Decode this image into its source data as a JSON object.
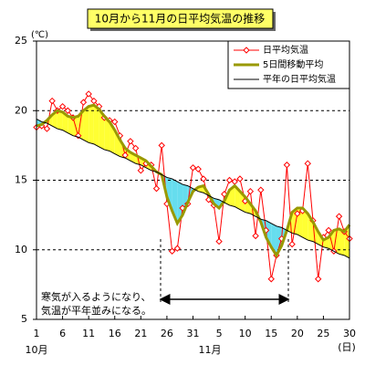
{
  "chart_data": {
    "type": "line",
    "title": "10月から11月の日平均気温の推移",
    "y_label": "(℃)",
    "x_unit": "(日)",
    "month_labels": [
      "10月",
      "11月"
    ],
    "annotation": [
      "寒気が入るようになり、",
      "気温が平年並みになる。"
    ],
    "categories": [
      "1",
      null,
      null,
      null,
      null,
      "6",
      null,
      null,
      null,
      null,
      "11",
      null,
      null,
      null,
      null,
      "16",
      null,
      null,
      null,
      null,
      "21",
      null,
      null,
      null,
      null,
      "26",
      null,
      null,
      null,
      null,
      "31",
      null,
      null,
      null,
      null,
      "5",
      null,
      null,
      null,
      null,
      "10",
      null,
      null,
      null,
      null,
      "15",
      null,
      null,
      null,
      null,
      "20",
      null,
      null,
      null,
      null,
      "25",
      null,
      null,
      null,
      null,
      "30"
    ],
    "ylim": [
      5,
      25
    ],
    "yticks": [
      5,
      10,
      15,
      20,
      25
    ],
    "grid": true,
    "legend": "upper right",
    "series": [
      {
        "name": "日平均気温",
        "color": "#ff0000",
        "values": [
          18.8,
          18.9,
          18.7,
          20.7,
          20.0,
          20.3,
          20.0,
          19.5,
          18.2,
          20.6,
          21.2,
          20.7,
          20.3,
          19.5,
          19.3,
          19.2,
          18.2,
          16.8,
          17.8,
          17.3,
          15.7,
          16.2,
          16.1,
          14.4,
          17.5,
          13.3,
          9.9,
          10.1,
          13.0,
          13.3,
          15.9,
          15.8,
          15.1,
          13.6,
          13.2,
          10.6,
          14.0,
          15.0,
          14.9,
          15.1,
          13.5,
          14.2,
          11.0,
          14.3,
          11.4,
          7.9,
          9.6,
          10.8,
          16.1,
          10.4,
          12.6,
          12.8,
          16.2,
          12.1,
          7.9,
          10.9,
          11.4,
          9.9,
          12.4,
          11.3,
          10.8
        ]
      },
      {
        "name": "5日間移動平均",
        "color": "#999900",
        "values": [
          18.9,
          19.0,
          19.3,
          19.7,
          20.0,
          19.9,
          19.6,
          19.5,
          19.6,
          20.0,
          20.3,
          20.4,
          20.1,
          19.6,
          19.2,
          18.6,
          17.9,
          17.3,
          17.0,
          16.8,
          16.6,
          16.4,
          16.0,
          15.6,
          15.4,
          13.8,
          12.8,
          11.9,
          12.5,
          13.4,
          14.2,
          14.5,
          14.6,
          14.0,
          13.3,
          13.0,
          13.5,
          14.3,
          14.6,
          14.2,
          13.8,
          13.3,
          12.8,
          12.0,
          10.9,
          10.2,
          9.6,
          10.3,
          11.4,
          12.7,
          13.0,
          13.0,
          12.6,
          12.0,
          11.3,
          10.7,
          10.9,
          11.4,
          11.5,
          11.3,
          11.8
        ]
      },
      {
        "name": "平年の日平均気温",
        "color": "#000000",
        "values": [
          19.4,
          19.2,
          19.1,
          18.9,
          18.7,
          18.6,
          18.4,
          18.2,
          18.1,
          17.9,
          17.7,
          17.6,
          17.4,
          17.2,
          17.1,
          16.9,
          16.7,
          16.6,
          16.4,
          16.2,
          16.1,
          15.9,
          15.7,
          15.6,
          15.4,
          15.2,
          15.1,
          14.9,
          14.7,
          14.6,
          14.4,
          14.2,
          14.1,
          13.9,
          13.7,
          13.6,
          13.4,
          13.2,
          13.1,
          12.9,
          12.7,
          12.6,
          12.4,
          12.2,
          12.1,
          11.9,
          11.7,
          11.6,
          11.4,
          11.2,
          11.1,
          10.9,
          10.7,
          10.6,
          10.4,
          10.2,
          10.1,
          9.9,
          9.7,
          9.6,
          9.4
        ]
      }
    ],
    "above_color": "#ffff33",
    "below_color": "#66ddee"
  }
}
